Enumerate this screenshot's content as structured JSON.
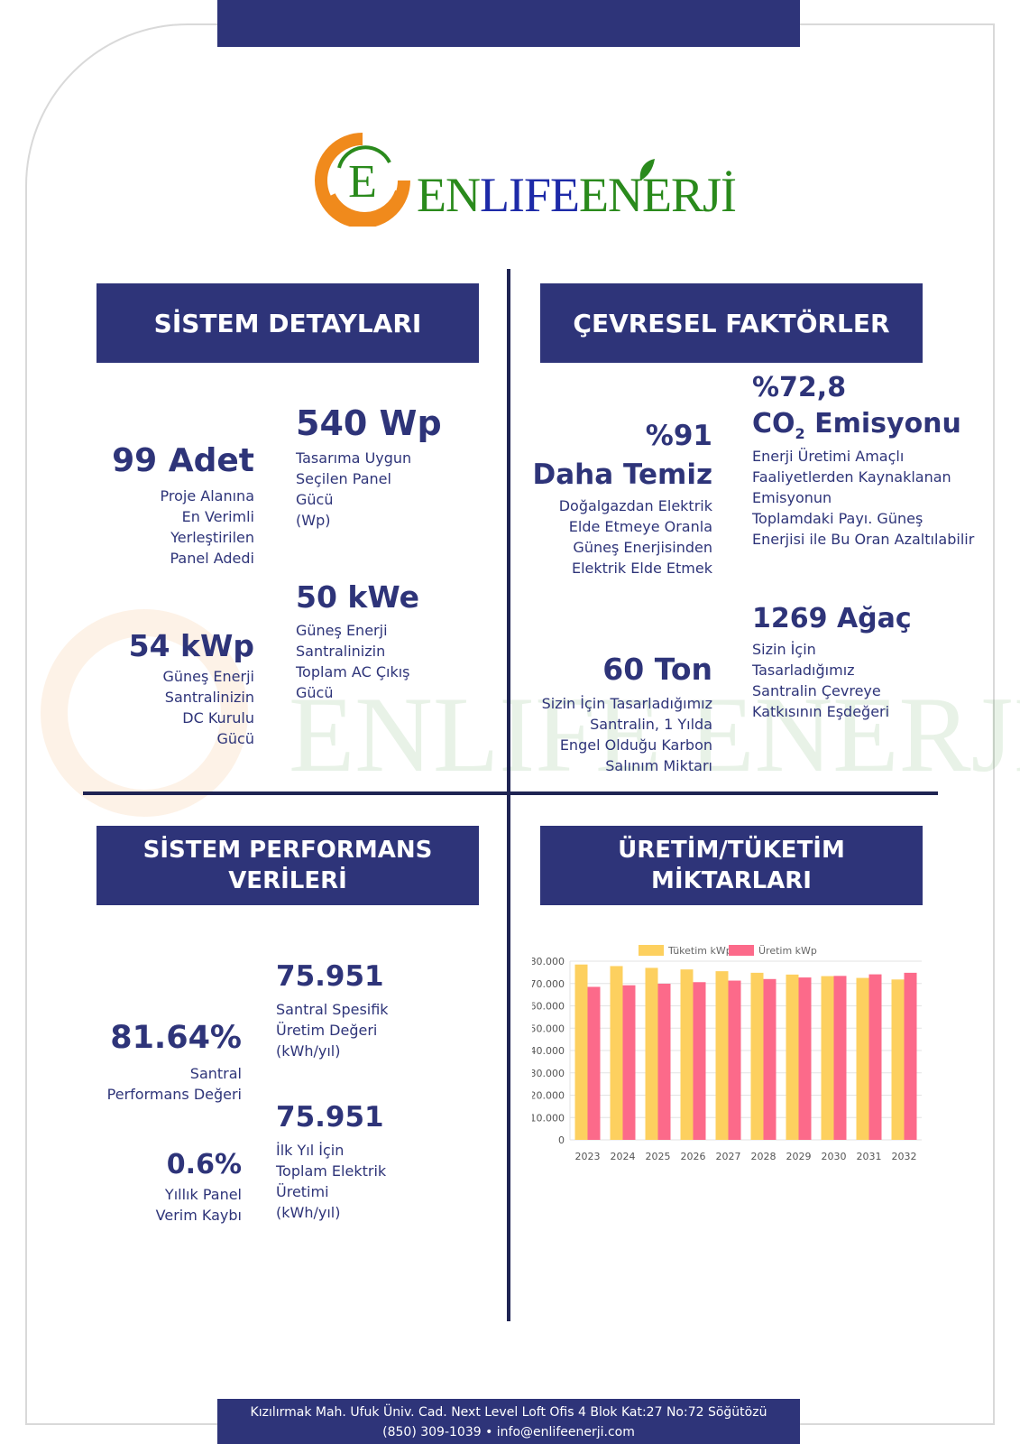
{
  "brand": {
    "name_green_1": "EN",
    "name_blue": "LIFE",
    "name_green_2": "ENERJİ",
    "monogram": "E"
  },
  "sections": {
    "system_details": "SİSTEM DETAYLARI",
    "environmental": "ÇEVRESEL FAKTÖRLER",
    "performance": [
      "SİSTEM PERFORMANS",
      "VERİLERİ"
    ],
    "production": [
      "ÜRETİM/TÜKETİM",
      "MİKTARLARI"
    ]
  },
  "system_details": {
    "panel_count": {
      "value": "99 Adet",
      "desc": [
        "Proje Alanına",
        "En Verimli",
        "Yerleştirilen",
        "Panel Adedi"
      ]
    },
    "panel_power": {
      "value": "540 Wp",
      "desc": [
        "Tasarıma Uygun",
        "Seçilen Panel",
        "Gücü",
        "(Wp)"
      ]
    },
    "dc_power": {
      "value": "54 kWp",
      "desc": [
        "Güneş Enerji",
        "Santralinizin",
        "DC Kurulu",
        "Gücü"
      ]
    },
    "ac_power": {
      "value": "50 kWe",
      "desc": [
        "Güneş Enerji",
        "Santralinizin",
        "Toplam AC Çıkış",
        "Gücü"
      ]
    }
  },
  "environmental": {
    "cleaner": {
      "value1": "%91",
      "value2": "Daha Temiz",
      "desc": [
        "Doğalgazdan Elektrik",
        "Elde Etmeye Oranla",
        "Güneş Enerjisinden",
        "Elektrik Elde Etmek"
      ]
    },
    "co2": {
      "value1": "%72,8",
      "value2_pre": "CO",
      "value2_sub": "2",
      "value2_post": " Emisyonu",
      "desc": [
        "Enerji Üretimi Amaçlı",
        "Faaliyetlerden Kaynaklanan",
        "Emisyonun",
        "Toplamdaki Payı. Güneş",
        "Enerjisi ile Bu Oran Azaltılabilir"
      ]
    },
    "carbon": {
      "value": "60 Ton",
      "desc": [
        "Sizin İçin Tasarladığımız",
        "Santralin, 1 Yılda",
        "Engel Olduğu Karbon",
        "Salınım Miktarı"
      ]
    },
    "trees": {
      "value": "1269 Ağaç",
      "desc": [
        "Sizin İçin",
        "Tasarladığımız",
        "Santralin Çevreye",
        "Katkısının Eşdeğeri"
      ]
    }
  },
  "performance": {
    "pr": {
      "value": "81.64%",
      "desc": [
        "Santral",
        "Performans Değeri"
      ]
    },
    "loss": {
      "value": "0.6%",
      "desc": [
        "Yıllık Panel",
        "Verim Kaybı"
      ]
    },
    "specific": {
      "value": "75.951",
      "desc": [
        "Santral Spesifik",
        "Üretim Değeri",
        "(kWh/yıl)"
      ]
    },
    "first_year": {
      "value": "75.951",
      "desc": [
        "İlk Yıl İçin",
        "Toplam Elektrik",
        "Üretimi",
        "(kWh/yıl)"
      ]
    }
  },
  "footer": {
    "address": "Kızılırmak Mah. Ufuk Üniv. Cad. Next Level Loft Ofis 4 Blok Kat:27 No:72 Söğütözü",
    "contact": "(850) 309-1039 • info@enlifeenerji.com"
  },
  "colors": {
    "navy": "#2e3479",
    "consumption": "#fdd05f",
    "production": "#fc6a8a",
    "logo_orange": "#f08a1c",
    "logo_green": "#2a8a1c"
  },
  "chart_data": {
    "type": "bar",
    "categories": [
      "2023",
      "2024",
      "2025",
      "2026",
      "2027",
      "2028",
      "2029",
      "2030",
      "2031",
      "2032"
    ],
    "series": [
      {
        "name": "Tüketim kWp",
        "values": [
          78500,
          77800,
          77000,
          76300,
          75500,
          74800,
          74000,
          73300,
          72500,
          71800
        ]
      },
      {
        "name": "Üretim kWp",
        "values": [
          68500,
          69200,
          69900,
          70600,
          71300,
          72000,
          72700,
          73400,
          74100,
          74800
        ]
      }
    ],
    "yticks": [
      "0",
      "10.000",
      "20.000",
      "30.000",
      "40.000",
      "50.000",
      "60.000",
      "70.000",
      "80.000"
    ],
    "ylim": [
      0,
      80000
    ],
    "legend": "top"
  }
}
